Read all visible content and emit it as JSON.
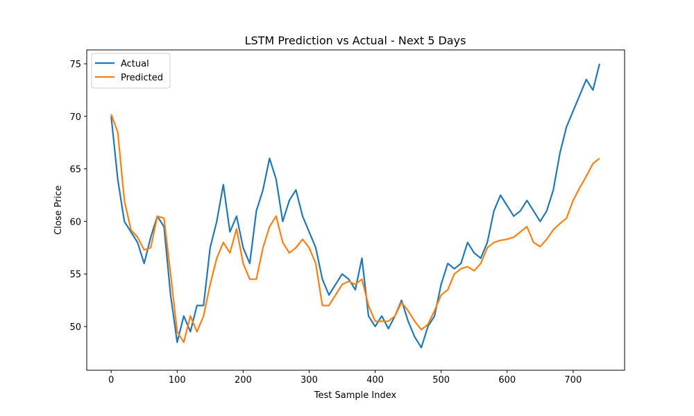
{
  "chart_data": {
    "type": "line",
    "title": "LSTM Prediction vs Actual - Next 5 Days",
    "x_label": "Test Sample Index",
    "y_label": "Close Price",
    "x": [
      0,
      10,
      20,
      30,
      40,
      50,
      60,
      70,
      80,
      90,
      100,
      110,
      120,
      130,
      140,
      150,
      160,
      170,
      180,
      190,
      200,
      210,
      220,
      230,
      240,
      250,
      260,
      270,
      280,
      290,
      300,
      310,
      320,
      330,
      340,
      350,
      360,
      370,
      380,
      390,
      400,
      410,
      420,
      430,
      440,
      450,
      460,
      470,
      480,
      490,
      500,
      510,
      520,
      530,
      540,
      550,
      560,
      570,
      580,
      590,
      600,
      610,
      620,
      630,
      640,
      650,
      660,
      670,
      680,
      690,
      700,
      710,
      720,
      730,
      740
    ],
    "series": [
      {
        "name": "Actual",
        "color": "#1f77b4",
        "values": [
          70,
          64,
          60,
          59,
          58,
          56,
          58.5,
          60.5,
          59.5,
          53,
          48.5,
          51,
          49.5,
          52,
          52,
          57.5,
          60,
          63.5,
          59,
          60.5,
          57.5,
          56,
          61,
          63,
          66,
          64,
          60,
          62,
          63,
          60.5,
          59,
          57.5,
          54.5,
          53,
          54,
          55,
          54.5,
          53.5,
          56.5,
          51,
          50,
          51,
          49.8,
          51,
          52.5,
          50.5,
          49,
          48,
          50,
          51,
          54,
          56,
          55.5,
          56,
          58,
          57,
          56.5,
          58,
          61,
          62.5,
          61.5,
          60.5,
          61,
          62,
          61,
          60,
          61,
          63,
          66.5,
          69,
          70.5,
          72,
          73.5,
          72.5,
          75
        ]
      },
      {
        "name": "Predicted",
        "color": "#ff7f0e",
        "values": [
          70.2,
          68.5,
          62,
          59.2,
          58.5,
          57.3,
          57.5,
          60.5,
          60.3,
          55,
          49.5,
          48.5,
          51,
          49.5,
          51,
          54,
          56.5,
          58,
          57,
          59.3,
          56,
          54.5,
          54.5,
          57.5,
          59.5,
          60.5,
          58,
          57,
          57.5,
          58.3,
          57.5,
          56,
          52,
          52,
          53,
          54,
          54.3,
          54,
          54.5,
          52,
          50.5,
          50.5,
          50.5,
          51,
          52.3,
          51.5,
          50.5,
          49.7,
          50.2,
          51.5,
          53,
          53.5,
          55,
          55.5,
          55.7,
          55.3,
          56,
          57.5,
          58,
          58.2,
          58.3,
          58.5,
          59,
          59.5,
          58,
          57.6,
          58.3,
          59.2,
          59.8,
          60.3,
          62,
          63.2,
          64.3,
          65.5,
          66
        ]
      }
    ],
    "xlim": [
      -37,
      778
    ],
    "ylim": [
      45.84,
      76.32
    ],
    "xticks": [
      0,
      100,
      200,
      300,
      400,
      500,
      600,
      700
    ],
    "yticks": [
      50,
      55,
      60,
      65,
      70,
      75
    ],
    "legend": "upper-left"
  }
}
